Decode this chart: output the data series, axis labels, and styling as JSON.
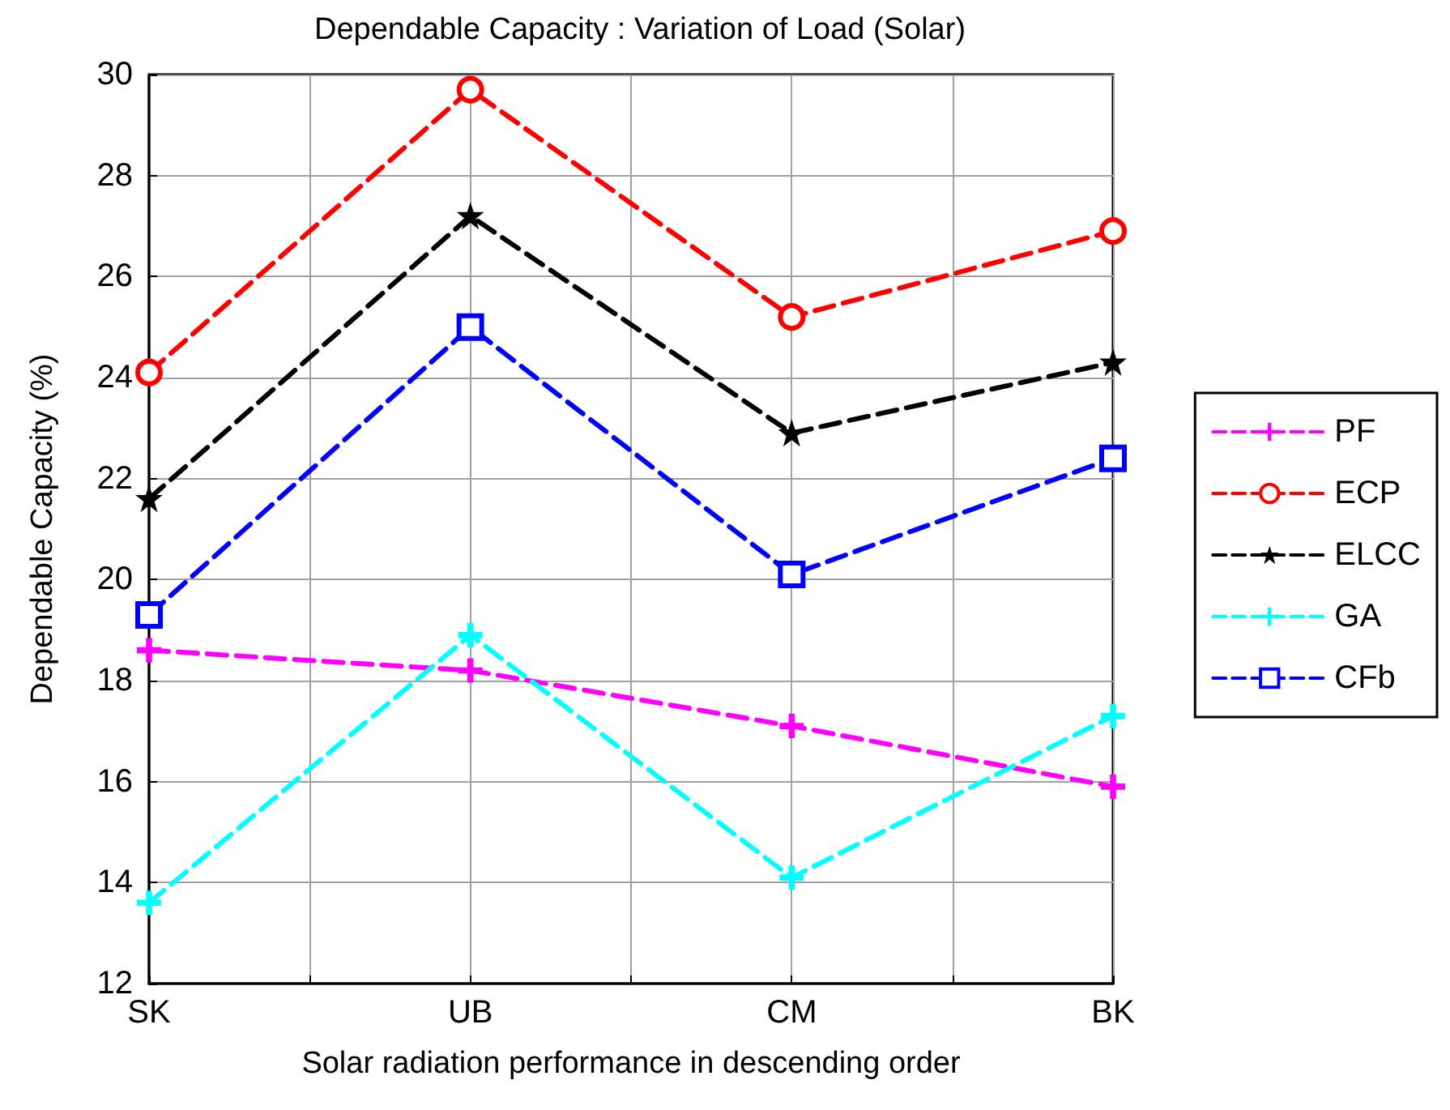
{
  "chart_data": {
    "type": "line",
    "title": "Dependable Capacity : Variation of Load (Solar)",
    "xlabel": "Solar radiation performance in descending order",
    "ylabel": "Dependable Capacity (%)",
    "categories": [
      "SK",
      "UB",
      "CM",
      "BK"
    ],
    "series": [
      {
        "name": "PF",
        "color": "#ff00ff",
        "marker": "cross",
        "values": [
          18.6,
          18.2,
          17.1,
          15.9
        ]
      },
      {
        "name": "ECP",
        "color": "#ff0000",
        "marker": "circle",
        "values": [
          24.1,
          29.7,
          25.2,
          26.9
        ]
      },
      {
        "name": "ELCC",
        "color": "#000000",
        "marker": "star",
        "values": [
          21.6,
          27.2,
          22.9,
          24.3
        ]
      },
      {
        "name": "GA",
        "color": "#00ffff",
        "marker": "cross",
        "values": [
          13.6,
          18.9,
          14.1,
          17.3
        ]
      },
      {
        "name": "CFb",
        "color": "#0000ff",
        "marker": "square",
        "values": [
          19.3,
          25.0,
          20.1,
          22.4
        ]
      }
    ],
    "ylim": [
      12,
      30
    ],
    "yticks": [
      12,
      14,
      16,
      18,
      20,
      22,
      24,
      26,
      28,
      30
    ],
    "grid": true,
    "legend": "right",
    "line_style": "dashed"
  }
}
